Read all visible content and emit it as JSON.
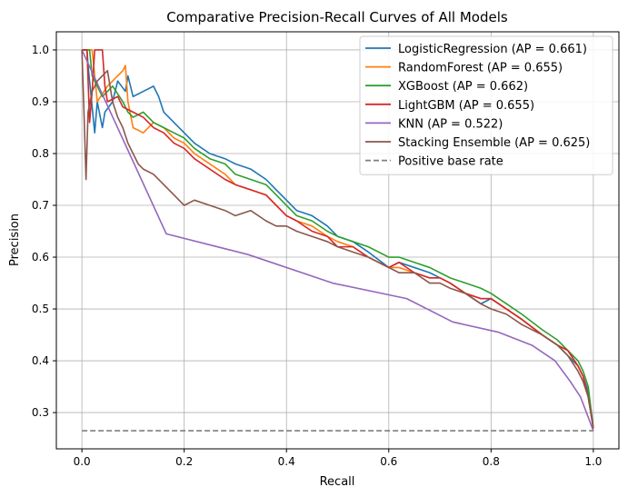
{
  "chart_data": {
    "type": "line",
    "title": "Comparative Precision-Recall Curves of All Models",
    "xlabel": "Recall",
    "ylabel": "Precision",
    "xlim": [
      -0.05,
      1.05
    ],
    "ylim": [
      0.23,
      1.035
    ],
    "x_ticks": [
      0.0,
      0.2,
      0.4,
      0.6,
      0.8,
      1.0
    ],
    "x_tick_labels": [
      "0.0",
      "0.2",
      "0.4",
      "0.6",
      "0.8",
      "1.0"
    ],
    "y_ticks": [
      0.3,
      0.4,
      0.5,
      0.6,
      0.7,
      0.8,
      0.9,
      1.0
    ],
    "y_tick_labels": [
      "0.3",
      "0.4",
      "0.5",
      "0.6",
      "0.7",
      "0.8",
      "0.9",
      "1.0"
    ],
    "grid": true,
    "legend_position": "top-right",
    "series": [
      {
        "name": "LogisticRegression (AP = 0.661)",
        "color": "#1f77b4",
        "style": "solid",
        "x": [
          0.0,
          0.01,
          0.012,
          0.025,
          0.03,
          0.04,
          0.045,
          0.06,
          0.07,
          0.085,
          0.09,
          0.1,
          0.12,
          0.14,
          0.15,
          0.16,
          0.18,
          0.2,
          0.22,
          0.25,
          0.28,
          0.3,
          0.33,
          0.36,
          0.38,
          0.4,
          0.42,
          0.45,
          0.48,
          0.5,
          0.53,
          0.56,
          0.6,
          0.62,
          0.65,
          0.68,
          0.7,
          0.72,
          0.75,
          0.78,
          0.8,
          0.83,
          0.86,
          0.9,
          0.93,
          0.95,
          0.97,
          0.98,
          0.99,
          1.0
        ],
        "y": [
          1.0,
          1.0,
          0.97,
          0.84,
          0.9,
          0.85,
          0.88,
          0.9,
          0.94,
          0.92,
          0.95,
          0.91,
          0.92,
          0.93,
          0.91,
          0.88,
          0.86,
          0.84,
          0.82,
          0.8,
          0.79,
          0.78,
          0.77,
          0.75,
          0.73,
          0.71,
          0.69,
          0.68,
          0.66,
          0.64,
          0.63,
          0.61,
          0.58,
          0.59,
          0.58,
          0.57,
          0.56,
          0.55,
          0.53,
          0.51,
          0.52,
          0.5,
          0.48,
          0.45,
          0.43,
          0.41,
          0.39,
          0.37,
          0.34,
          0.27
        ]
      },
      {
        "name": "RandomForest (AP = 0.655)",
        "color": "#ff7f0e",
        "style": "solid",
        "x": [
          0.0,
          0.02,
          0.03,
          0.05,
          0.07,
          0.08,
          0.085,
          0.09,
          0.1,
          0.12,
          0.14,
          0.16,
          0.18,
          0.2,
          0.22,
          0.25,
          0.28,
          0.3,
          0.33,
          0.36,
          0.38,
          0.4,
          0.42,
          0.45,
          0.48,
          0.5,
          0.53,
          0.56,
          0.6,
          0.62,
          0.65,
          0.68,
          0.7,
          0.72,
          0.75,
          0.78,
          0.8,
          0.83,
          0.86,
          0.9,
          0.93,
          0.95,
          0.97,
          0.98,
          0.99,
          1.0
        ],
        "y": [
          1.0,
          1.0,
          0.9,
          0.93,
          0.95,
          0.96,
          0.97,
          0.9,
          0.85,
          0.84,
          0.86,
          0.85,
          0.83,
          0.82,
          0.8,
          0.78,
          0.76,
          0.74,
          0.73,
          0.72,
          0.7,
          0.68,
          0.67,
          0.66,
          0.64,
          0.63,
          0.62,
          0.6,
          0.58,
          0.58,
          0.57,
          0.56,
          0.56,
          0.55,
          0.53,
          0.52,
          0.52,
          0.5,
          0.48,
          0.45,
          0.43,
          0.42,
          0.39,
          0.37,
          0.33,
          0.27
        ]
      },
      {
        "name": "XGBoost (AP = 0.662)",
        "color": "#2ca02c",
        "style": "solid",
        "x": [
          0.0,
          0.015,
          0.02,
          0.04,
          0.06,
          0.08,
          0.09,
          0.1,
          0.12,
          0.14,
          0.16,
          0.18,
          0.2,
          0.22,
          0.25,
          0.28,
          0.3,
          0.33,
          0.36,
          0.38,
          0.4,
          0.42,
          0.45,
          0.48,
          0.5,
          0.53,
          0.56,
          0.6,
          0.62,
          0.65,
          0.68,
          0.7,
          0.72,
          0.75,
          0.78,
          0.8,
          0.83,
          0.86,
          0.9,
          0.93,
          0.95,
          0.97,
          0.98,
          0.99,
          1.0
        ],
        "y": [
          1.0,
          1.0,
          0.95,
          0.91,
          0.93,
          0.9,
          0.88,
          0.87,
          0.88,
          0.86,
          0.85,
          0.84,
          0.83,
          0.81,
          0.79,
          0.78,
          0.76,
          0.75,
          0.74,
          0.72,
          0.7,
          0.68,
          0.67,
          0.65,
          0.64,
          0.63,
          0.62,
          0.6,
          0.6,
          0.59,
          0.58,
          0.57,
          0.56,
          0.55,
          0.54,
          0.53,
          0.51,
          0.49,
          0.46,
          0.44,
          0.42,
          0.4,
          0.38,
          0.35,
          0.27
        ]
      },
      {
        "name": "LightGBM (AP = 0.655)",
        "color": "#d62728",
        "style": "solid",
        "x": [
          0.0,
          0.01,
          0.015,
          0.02,
          0.025,
          0.04,
          0.045,
          0.05,
          0.07,
          0.08,
          0.1,
          0.12,
          0.14,
          0.16,
          0.18,
          0.2,
          0.22,
          0.25,
          0.28,
          0.3,
          0.33,
          0.36,
          0.38,
          0.4,
          0.42,
          0.45,
          0.48,
          0.5,
          0.53,
          0.56,
          0.6,
          0.62,
          0.65,
          0.68,
          0.7,
          0.72,
          0.75,
          0.78,
          0.8,
          0.83,
          0.86,
          0.9,
          0.93,
          0.95,
          0.97,
          0.98,
          0.99,
          1.0
        ],
        "y": [
          1.0,
          1.0,
          0.86,
          0.92,
          1.0,
          1.0,
          0.93,
          0.9,
          0.91,
          0.89,
          0.88,
          0.87,
          0.85,
          0.84,
          0.82,
          0.81,
          0.79,
          0.77,
          0.75,
          0.74,
          0.73,
          0.72,
          0.7,
          0.68,
          0.67,
          0.65,
          0.64,
          0.62,
          0.62,
          0.6,
          0.58,
          0.59,
          0.57,
          0.56,
          0.56,
          0.55,
          0.53,
          0.52,
          0.52,
          0.5,
          0.48,
          0.45,
          0.43,
          0.42,
          0.39,
          0.37,
          0.33,
          0.27
        ]
      },
      {
        "name": "KNN (AP = 0.522)",
        "color": "#9467bd",
        "style": "solid",
        "x": [
          0.0,
          0.165,
          0.325,
          0.49,
          0.635,
          0.725,
          0.815,
          0.88,
          0.925,
          0.955,
          0.975,
          1.0
        ],
        "y": [
          1.0,
          0.645,
          0.605,
          0.55,
          0.52,
          0.475,
          0.455,
          0.43,
          0.4,
          0.36,
          0.33,
          0.265
        ]
      },
      {
        "name": "Stacking Ensemble (AP = 0.625)",
        "color": "#8c564b",
        "style": "solid",
        "x": [
          0.0,
          0.005,
          0.008,
          0.012,
          0.02,
          0.03,
          0.04,
          0.05,
          0.06,
          0.07,
          0.08,
          0.09,
          0.1,
          0.11,
          0.12,
          0.14,
          0.16,
          0.18,
          0.2,
          0.22,
          0.25,
          0.28,
          0.3,
          0.33,
          0.36,
          0.38,
          0.4,
          0.42,
          0.45,
          0.48,
          0.5,
          0.53,
          0.56,
          0.6,
          0.62,
          0.65,
          0.68,
          0.7,
          0.72,
          0.75,
          0.78,
          0.8,
          0.83,
          0.86,
          0.9,
          0.93,
          0.95,
          0.97,
          0.98,
          0.99,
          1.0
        ],
        "y": [
          1.0,
          0.85,
          0.75,
          0.88,
          0.92,
          0.94,
          0.95,
          0.96,
          0.9,
          0.87,
          0.85,
          0.82,
          0.8,
          0.78,
          0.77,
          0.76,
          0.74,
          0.72,
          0.7,
          0.71,
          0.7,
          0.69,
          0.68,
          0.69,
          0.67,
          0.66,
          0.66,
          0.65,
          0.64,
          0.63,
          0.62,
          0.61,
          0.6,
          0.58,
          0.57,
          0.57,
          0.55,
          0.55,
          0.54,
          0.53,
          0.51,
          0.5,
          0.49,
          0.47,
          0.45,
          0.43,
          0.41,
          0.38,
          0.36,
          0.33,
          0.27
        ]
      },
      {
        "name": "Positive base rate",
        "color": "#7f7f7f",
        "style": "dashed",
        "x": [
          0.0,
          1.0
        ],
        "y": [
          0.265,
          0.265
        ]
      }
    ]
  }
}
